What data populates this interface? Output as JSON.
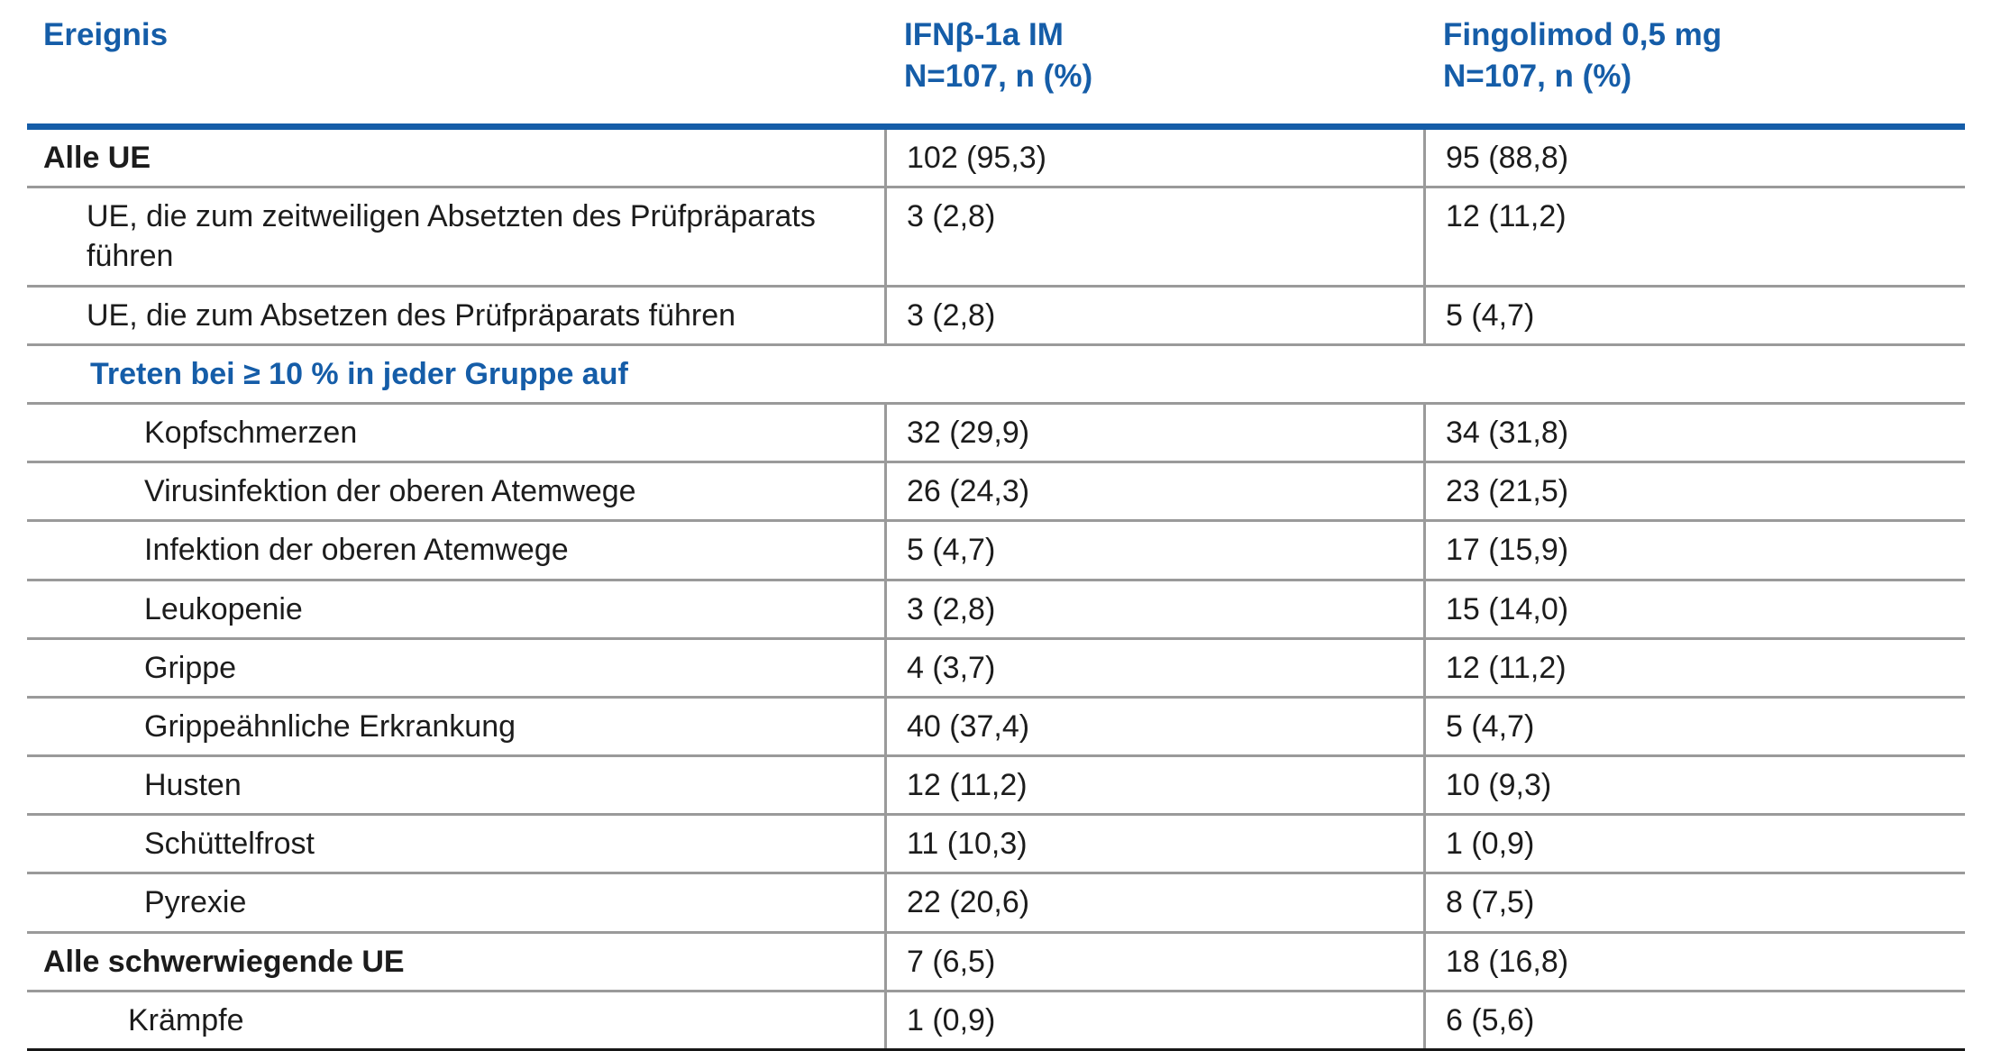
{
  "table": {
    "header": {
      "event_label": "Ereignis",
      "ifn_line1": "IFNβ-1a IM",
      "ifn_line2": "N=107, n (%)",
      "fingolimod_line1": "Fingolimod 0,5 mg",
      "fingolimod_line2": "N=107, n (%)"
    },
    "rows": [
      {
        "type": "data",
        "label": "Alle UE",
        "bold": true,
        "indent": 0,
        "ifn": "102 (95,3)",
        "fingolimod": "95 (88,8)"
      },
      {
        "type": "data",
        "label": "UE, die zum zeitweiligen Absetzten des Prüfpräparats führen",
        "bold": false,
        "indent": 1,
        "ifn": "3 (2,8)",
        "fingolimod": "12 (11,2)"
      },
      {
        "type": "data",
        "label": "UE, die zum Absetzen des Prüfpräparats führen",
        "bold": false,
        "indent": 1,
        "ifn": "3 (2,8)",
        "fingolimod": "5 (4,7)"
      },
      {
        "type": "section",
        "label": "Treten bei ≥ 10 % in jeder Gruppe auf",
        "bold": true,
        "indent": 1,
        "ifn": "",
        "fingolimod": ""
      },
      {
        "type": "data",
        "label": "Kopfschmerzen",
        "bold": false,
        "indent": 2,
        "ifn": "32 (29,9)",
        "fingolimod": "34 (31,8)"
      },
      {
        "type": "data",
        "label": "Virusinfektion der oberen Atemwege",
        "bold": false,
        "indent": 2,
        "ifn": "26 (24,3)",
        "fingolimod": "23 (21,5)"
      },
      {
        "type": "data",
        "label": "Infektion der oberen Atemwege",
        "bold": false,
        "indent": 2,
        "ifn": "5 (4,7)",
        "fingolimod": "17 (15,9)"
      },
      {
        "type": "data",
        "label": "Leukopenie",
        "bold": false,
        "indent": 2,
        "ifn": "3 (2,8)",
        "fingolimod": "15 (14,0)"
      },
      {
        "type": "data",
        "label": "Grippe",
        "bold": false,
        "indent": 2,
        "ifn": "4 (3,7)",
        "fingolimod": "12 (11,2)"
      },
      {
        "type": "data",
        "label": "Grippeähnliche Erkrankung",
        "bold": false,
        "indent": 2,
        "ifn": "40 (37,4)",
        "fingolimod": "5 (4,7)"
      },
      {
        "type": "data",
        "label": "Husten",
        "bold": false,
        "indent": 2,
        "ifn": "12 (11,2)",
        "fingolimod": "10 (9,3)"
      },
      {
        "type": "data",
        "label": "Schüttelfrost",
        "bold": false,
        "indent": 2,
        "ifn": "11 (10,3)",
        "fingolimod": "1 (0,9)"
      },
      {
        "type": "data",
        "label": "Pyrexie",
        "bold": false,
        "indent": 2,
        "ifn": "22 (20,6)",
        "fingolimod": "8 (7,5)"
      },
      {
        "type": "data",
        "label": "Alle schwerwiegende UE",
        "bold": true,
        "indent": 0,
        "ifn": "7 (6,5)",
        "fingolimod": "18 (16,8)"
      },
      {
        "type": "data",
        "label": "Krämpfe",
        "bold": false,
        "indent": 3,
        "ifn": "1 (0,9)",
        "fingolimod": "6 (5,6)"
      }
    ],
    "colors": {
      "accent_blue": "#155da8",
      "grid_gray": "#9a9a9a",
      "text_black": "#1c1c1c",
      "bottom_rule_black": "#161616"
    }
  }
}
